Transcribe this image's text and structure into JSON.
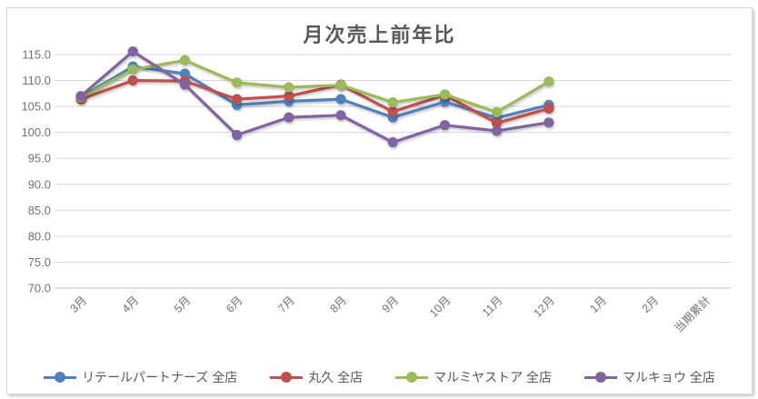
{
  "chart_data": {
    "type": "line",
    "title": "月次売上前年比",
    "categories": [
      "3月",
      "4月",
      "5月",
      "6月",
      "7月",
      "8月",
      "9月",
      "10月",
      "11月",
      "12月",
      "1月",
      "2月",
      "当期累計"
    ],
    "series": [
      {
        "name": "リテールパートナーズ 全店",
        "color": "#4F81BD",
        "values": [
          106.8,
          112.7,
          111.3,
          105.3,
          106.0,
          106.4,
          102.9,
          105.9,
          102.8,
          105.3
        ]
      },
      {
        "name": "丸久 全店",
        "color": "#C0504D",
        "values": [
          106.4,
          110.0,
          109.9,
          106.4,
          107.0,
          109.2,
          104.0,
          107.2,
          101.8,
          104.6
        ]
      },
      {
        "name": "マルミヤストア 全店",
        "color": "#9BBB59",
        "values": [
          106.7,
          112.1,
          113.9,
          109.6,
          108.7,
          109.1,
          105.8,
          107.3,
          103.9,
          109.8
        ]
      },
      {
        "name": "マルキョウ 全店",
        "color": "#8064A2",
        "values": [
          107.0,
          115.6,
          109.2,
          99.5,
          102.9,
          103.3,
          98.1,
          101.4,
          100.3,
          101.9
        ]
      }
    ],
    "ylim": [
      70,
      115
    ],
    "ytick_step": 5,
    "ytick_decimals": 1,
    "grid": true,
    "legend_position": "bottom",
    "colors": {
      "gridline": "#D9D9D9",
      "axis_line": "#BFBFBF",
      "axis_text": "#737373",
      "title_text": "#595959"
    }
  }
}
